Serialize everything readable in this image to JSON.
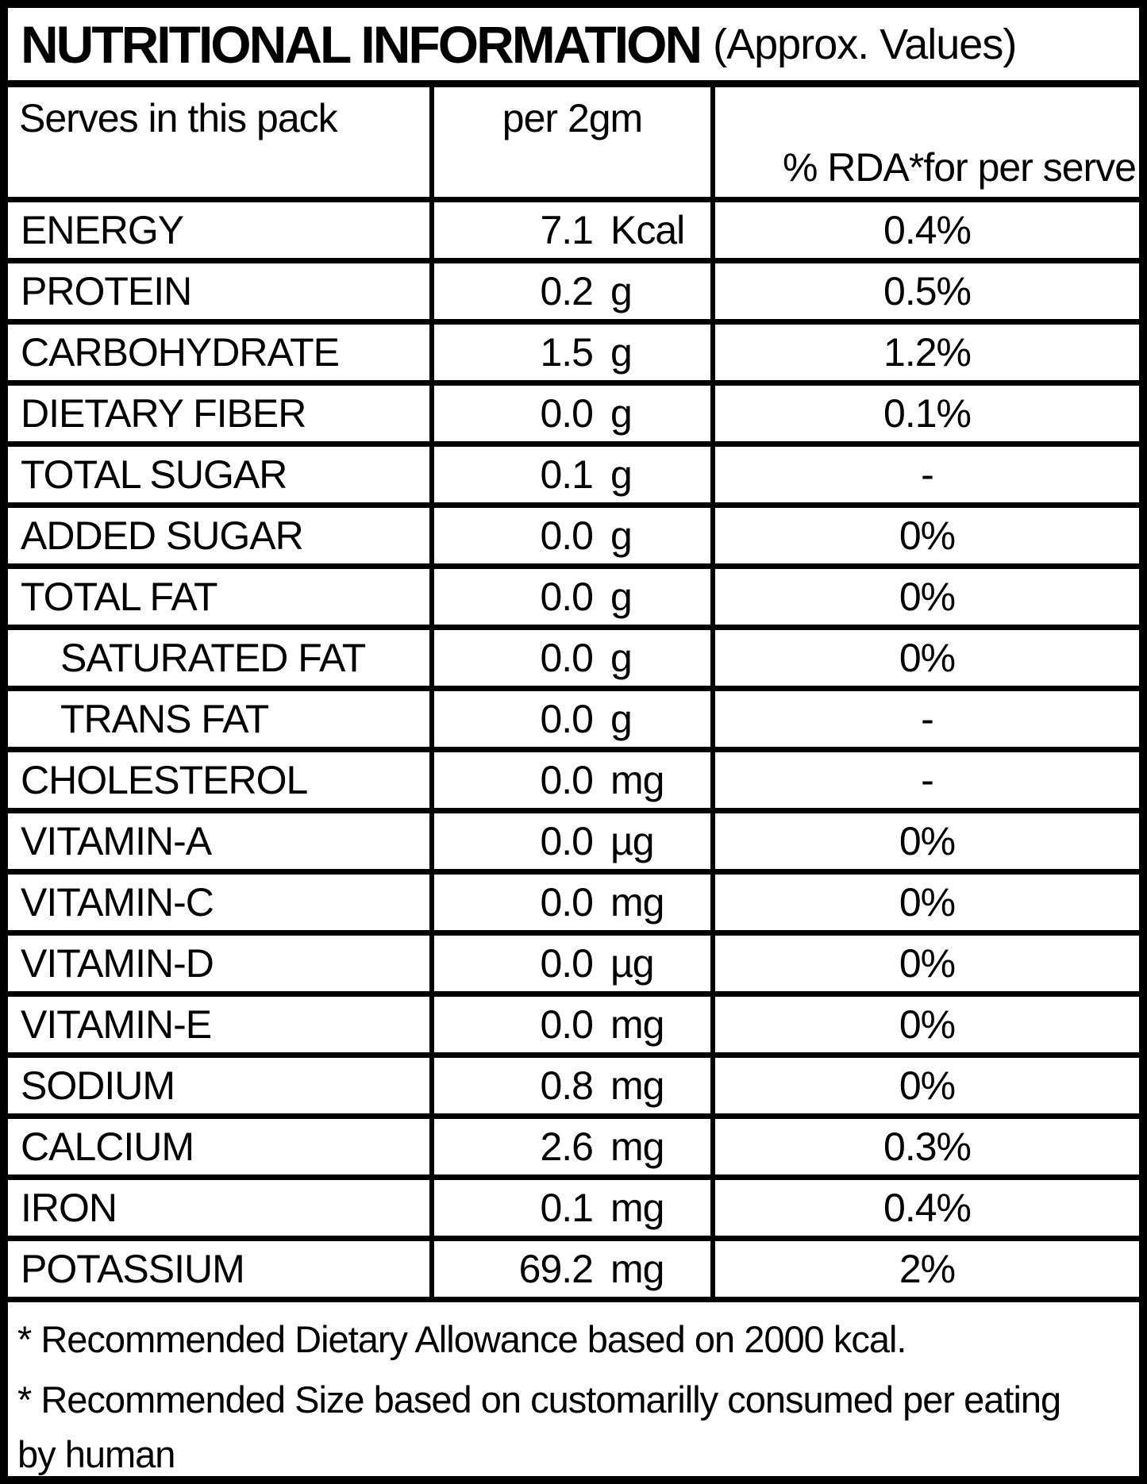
{
  "title": {
    "main": "NUTRITIONAL INFORMATION",
    "sub": "(Approx. Values)"
  },
  "header": {
    "col1": "Serves in this pack",
    "col2": "per 2gm",
    "col3": "% RDA*for per serve"
  },
  "rows": [
    {
      "label": "ENERGY",
      "value": "7.1",
      "unit": "Kcal",
      "rda": "0.4%",
      "indent": false
    },
    {
      "label": "PROTEIN",
      "value": "0.2",
      "unit": "g",
      "rda": "0.5%",
      "indent": false
    },
    {
      "label": "CARBOHYDRATE",
      "value": "1.5",
      "unit": "g",
      "rda": "1.2%",
      "indent": false
    },
    {
      "label": "DIETARY FIBER",
      "value": "0.0",
      "unit": "g",
      "rda": "0.1%",
      "indent": false
    },
    {
      "label": "TOTAL SUGAR",
      "value": "0.1",
      "unit": "g",
      "rda": "-",
      "indent": false
    },
    {
      "label": "ADDED SUGAR",
      "value": "0.0",
      "unit": "g",
      "rda": "0%",
      "indent": false
    },
    {
      "label": "TOTAL FAT",
      "value": "0.0",
      "unit": "g",
      "rda": "0%",
      "indent": false
    },
    {
      "label": "SATURATED FAT",
      "value": "0.0",
      "unit": "g",
      "rda": "0%",
      "indent": true
    },
    {
      "label": "TRANS FAT",
      "value": "0.0",
      "unit": "g",
      "rda": "-",
      "indent": true
    },
    {
      "label": "CHOLESTEROL",
      "value": "0.0",
      "unit": "mg",
      "rda": "-",
      "indent": false
    },
    {
      "label": "VITAMIN-A",
      "value": "0.0",
      "unit": "µg",
      "rda": "0%",
      "indent": false
    },
    {
      "label": "VITAMIN-C",
      "value": "0.0",
      "unit": "mg",
      "rda": "0%",
      "indent": false
    },
    {
      "label": "VITAMIN-D",
      "value": "0.0",
      "unit": "µg",
      "rda": "0%",
      "indent": false
    },
    {
      "label": "VITAMIN-E",
      "value": "0.0",
      "unit": "mg",
      "rda": "0%",
      "indent": false
    },
    {
      "label": "SODIUM",
      "value": "0.8",
      "unit": "mg",
      "rda": "0%",
      "indent": false
    },
    {
      "label": "CALCIUM",
      "value": "2.6",
      "unit": "mg",
      "rda": "0.3%",
      "indent": false
    },
    {
      "label": "IRON",
      "value": "0.1",
      "unit": "mg",
      "rda": "0.4%",
      "indent": false
    },
    {
      "label": "POTASSIUM",
      "value": "69.2",
      "unit": "mg",
      "rda": "2%",
      "indent": false
    }
  ],
  "footnotes": [
    "* Recommended  Dietary Allowance based on 2000 kcal.",
    "* Recommended Size based on customarilly consumed per eating\nby human"
  ]
}
